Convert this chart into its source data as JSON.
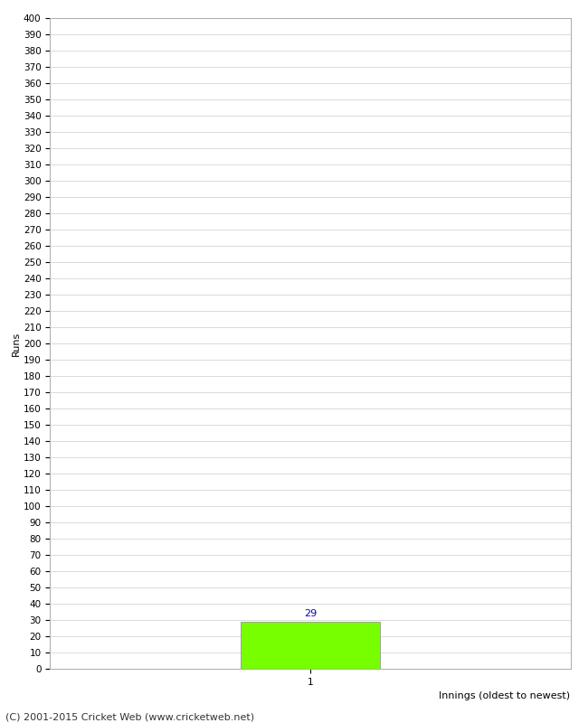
{
  "title": "",
  "categories": [
    1
  ],
  "values": [
    29
  ],
  "bar_color": "#77ff00",
  "bar_edge_color": "#888888",
  "xlabel": "Innings (oldest to newest)",
  "ylabel": "Runs",
  "ylim": [
    0,
    400
  ],
  "ytick_step": 10,
  "background_color": "#ffffff",
  "footer": "(C) 2001-2015 Cricket Web (www.cricketweb.net)",
  "value_label_color": "#0000cc",
  "value_label_fontsize": 8,
  "axis_label_fontsize": 8,
  "tick_label_fontsize": 7.5,
  "footer_fontsize": 8,
  "xlim": [
    -0.5,
    2.5
  ]
}
